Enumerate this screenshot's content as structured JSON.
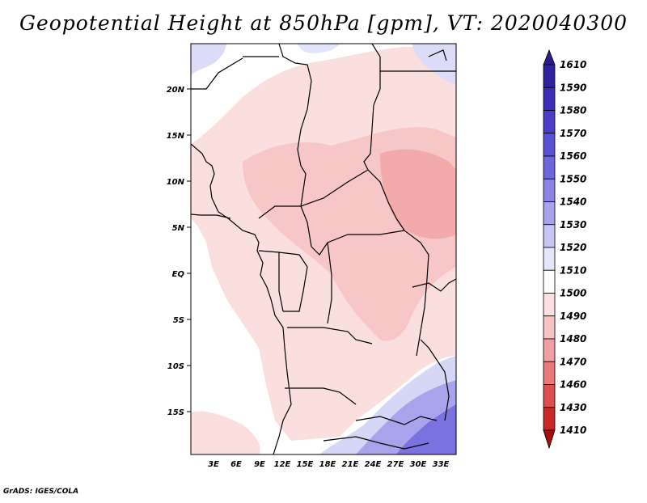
{
  "title": "Geopotential Height at 850hPa [gpm], VT: 2020040300",
  "credit": "GrADS: IGES/COLA",
  "map": {
    "lat_labels": [
      "20N",
      "15N",
      "10N",
      "5N",
      "EQ",
      "5S",
      "10S",
      "15S"
    ],
    "lon_labels": [
      "3E",
      "6E",
      "9E",
      "12E",
      "15E",
      "18E",
      "21E",
      "24E",
      "27E",
      "30E",
      "33E"
    ]
  },
  "colorbar": {
    "labels": [
      "1610",
      "1590",
      "1580",
      "1570",
      "1560",
      "1550",
      "1540",
      "1530",
      "1520",
      "1510",
      "1500",
      "1490",
      "1480",
      "1470",
      "1460",
      "1430",
      "1410"
    ],
    "colors": [
      "#2a1a8a",
      "#2f22a0",
      "#3a2eb8",
      "#4a3ec8",
      "#5a52d4",
      "#6e66dc",
      "#8a84e4",
      "#a8a4ec",
      "#c8c6f4",
      "#e6e6fa",
      "#ffffff",
      "#fce0e0",
      "#f6c2c2",
      "#f0a0a0",
      "#e87a7a",
      "#dc5050",
      "#c82828",
      "#a81010"
    ]
  }
}
